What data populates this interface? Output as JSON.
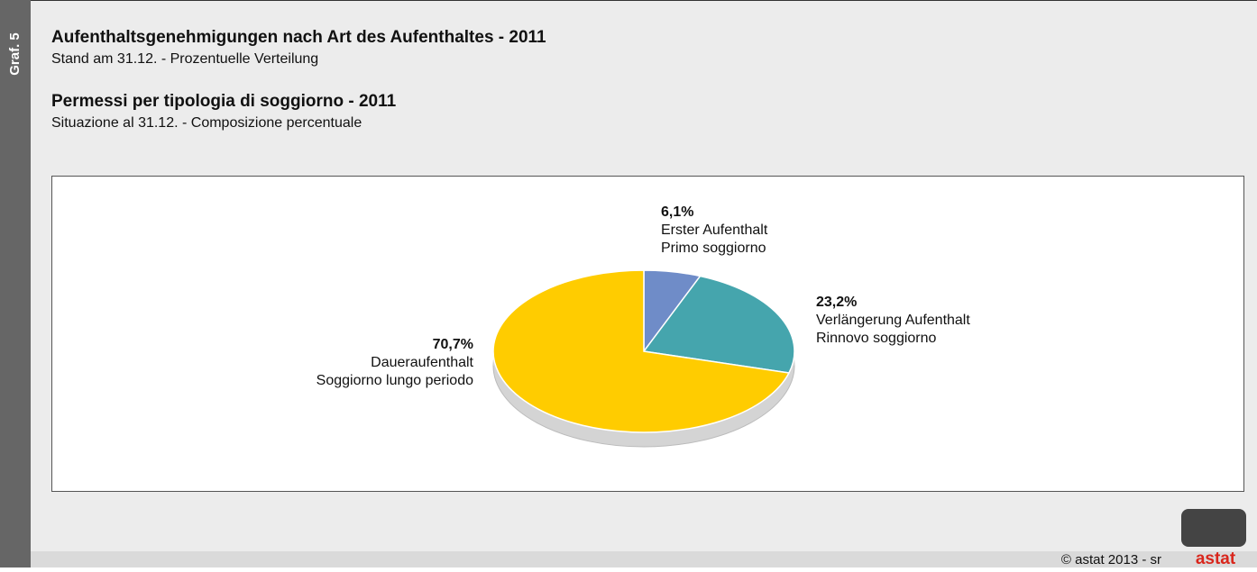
{
  "side_label": "Graf. 5",
  "chart_data": {
    "type": "pie",
    "title": "Aufenthaltsgenehmigungen nach Art des Aufenthaltes - 2011",
    "subtitle": "Stand am 31.12. - Prozentuelle Verteilung",
    "title_it": "Permessi per tipologia di soggiorno - 2011",
    "subtitle_it": "Situazione al 31.12. - Composizione percentuale",
    "categories": [
      [
        "Erster Aufenthalt",
        "Primo soggiorno"
      ],
      [
        "Verlängerung Aufenthalt",
        "Rinnovo soggiorno"
      ],
      [
        "Daueraufenthalt",
        "Soggiorno lungo periodo"
      ]
    ],
    "values": [
      6.1,
      23.2,
      70.7
    ],
    "value_labels": [
      "6,1%",
      "23,2%",
      "70,7%"
    ],
    "colors": [
      "#6f8cc8",
      "#45a5ad",
      "#ffcc00"
    ]
  },
  "footer": {
    "copyright": "©  astat 2013 - sr",
    "logo": "astat"
  }
}
